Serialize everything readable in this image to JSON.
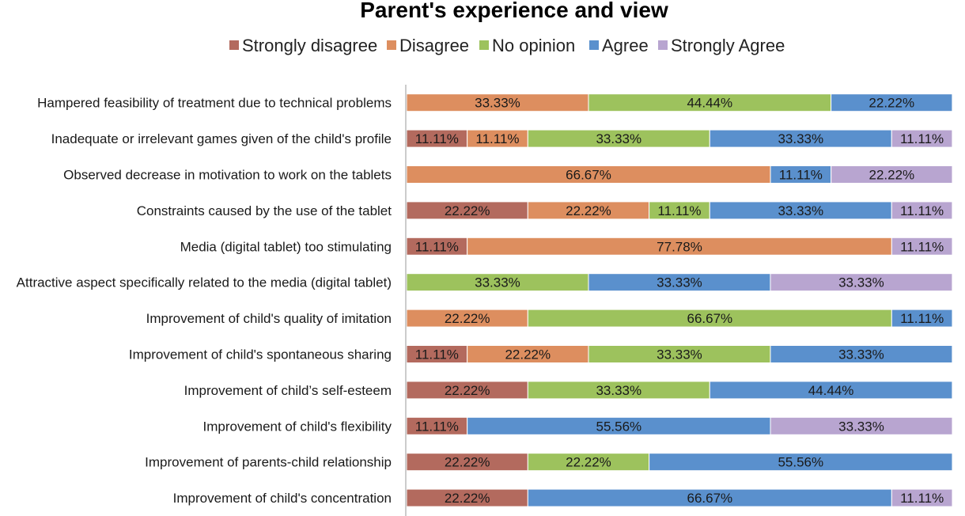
{
  "chart_data": {
    "type": "bar",
    "orientation": "horizontal",
    "stacked": true,
    "percent_stacked": true,
    "title": "Parent's experience and view",
    "legend_position": "top",
    "categories": [
      "Hampered feasibility of treatment due to technical problems",
      "Inadequate or irrelevant games given of the child's profile",
      "Observed decrease in motivation to work on the tablets ",
      "Constraints caused by the use of the tablet",
      "Media (digital tablet) too stimulating",
      "Attractive aspect specifically related to the media (digital tablet)",
      "Improvement of child's quality of imitation",
      "Improvement of child's spontaneous sharing",
      "Improvement of child’s self-esteem ",
      "Improvement of child's flexibility",
      "Improvement of parents-child relationship",
      "Improvement of child's concentration"
    ],
    "series": [
      {
        "name": "Strongly disagree",
        "color": "#b36a5e",
        "values": [
          0,
          11.11,
          0,
          22.22,
          11.11,
          0,
          0,
          11.11,
          22.22,
          11.11,
          22.22,
          22.22
        ]
      },
      {
        "name": "Disagree",
        "color": "#dd8e5f",
        "values": [
          33.33,
          11.11,
          66.67,
          22.22,
          77.78,
          0,
          22.22,
          22.22,
          0,
          0,
          0,
          0
        ]
      },
      {
        "name": "No opinion",
        "color": "#9dc25d",
        "values": [
          44.44,
          33.33,
          0,
          11.11,
          0,
          33.33,
          66.67,
          33.33,
          33.33,
          0,
          22.22,
          0
        ]
      },
      {
        "name": "Agree",
        "color": "#5a90cd",
        "values": [
          22.22,
          33.33,
          11.11,
          33.33,
          0,
          33.33,
          11.11,
          33.33,
          44.44,
          55.56,
          55.56,
          66.67
        ]
      },
      {
        "name": "Strongly Agree",
        "color": "#b8a5d0",
        "values": [
          0,
          11.11,
          22.22,
          11.11,
          11.11,
          33.33,
          0,
          0,
          0,
          33.33,
          0,
          11.11
        ]
      }
    ],
    "data_labels": [
      [
        null,
        "33.33%",
        "44.44%",
        "22.22%",
        null
      ],
      [
        "11.11%",
        "11.11%",
        "33.33%",
        "33.33%",
        "11.11%"
      ],
      [
        null,
        "66.67%",
        null,
        "11.11%",
        "22.22%"
      ],
      [
        "22.22%",
        "22.22%",
        "11.11%",
        "33.33%",
        "11.11%"
      ],
      [
        "11.11%",
        "77.78%",
        null,
        null,
        "11.11%"
      ],
      [
        null,
        null,
        "33.33%",
        "33.33%",
        "33.33%"
      ],
      [
        null,
        "22.22%",
        "66.67%",
        "11.11%",
        null
      ],
      [
        "11.11%",
        "22.22%",
        "33.33%",
        "33.33%",
        null
      ],
      [
        "22.22%",
        null,
        "33.33%",
        "44.44%",
        null
      ],
      [
        "11.11%",
        null,
        null,
        "55.56%",
        "33.33%"
      ],
      [
        "22.22%",
        null,
        "22.22%",
        "55.56%",
        null
      ],
      [
        "22.22%",
        null,
        null,
        "66.67%",
        "11.11%"
      ]
    ],
    "xlim": [
      0,
      100
    ]
  }
}
